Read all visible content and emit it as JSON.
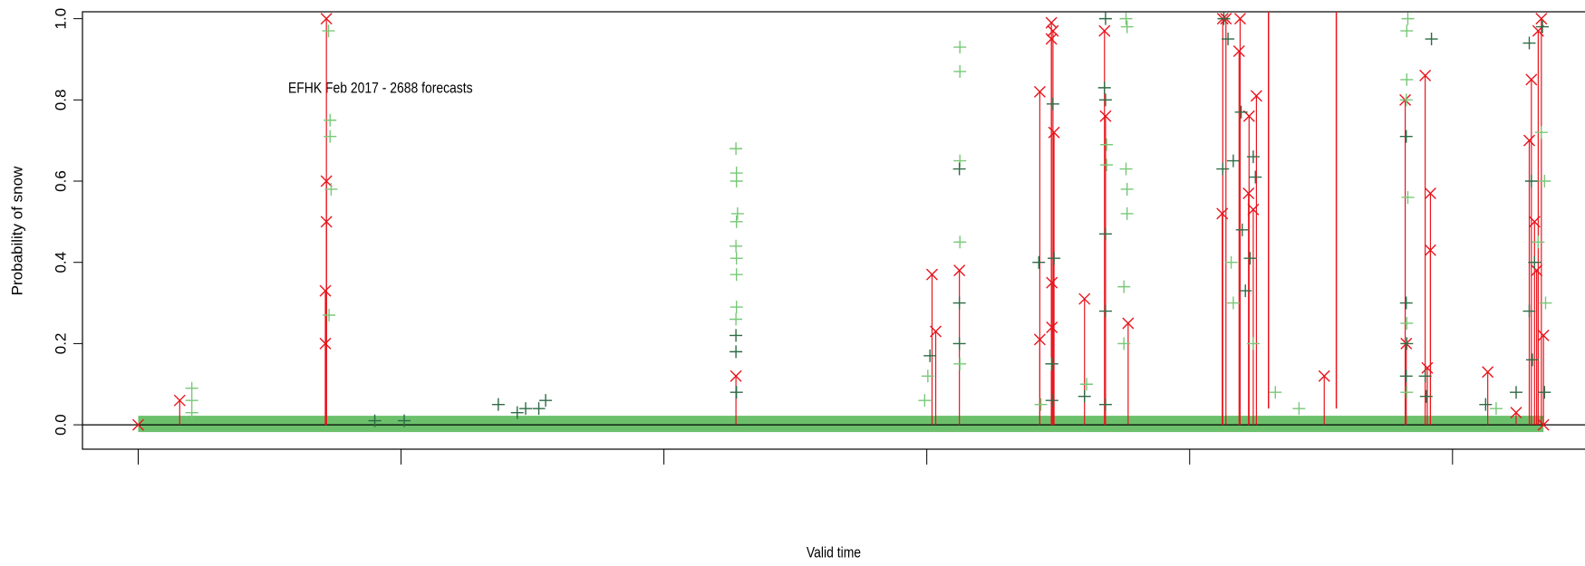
{
  "chart_data": {
    "type": "scatter",
    "annotation": "EFHK Feb 2017 - 2688 forecasts",
    "x_label": "Valid time",
    "y_label": "Probability of snow",
    "xlim": [
      -1.06,
      27.52
    ],
    "xticks": [
      0,
      5,
      10,
      15,
      20,
      25
    ],
    "ylim": [
      -0.06,
      1.017
    ],
    "yticks": [
      {
        "value": 0,
        "label": "0.0"
      },
      {
        "value": 0.2,
        "label": "0.2"
      },
      {
        "value": 0.4,
        "label": "0.4"
      },
      {
        "value": 0.6,
        "label": "0.6"
      },
      {
        "value": 0.8,
        "label": "0.8"
      },
      {
        "value": 1,
        "label": "1.0"
      }
    ],
    "hline": 0,
    "zero_band": {
      "x": [
        0,
        26.73
      ],
      "value": 0,
      "color": "#6cc06c"
    },
    "vlines": [
      21.5,
      22.79
    ],
    "vline_color": "#e8141c",
    "series": [
      {
        "marker": "cross",
        "color": "#e8141c",
        "stems": true,
        "x": [
          0,
          0.79,
          3.58,
          3.58,
          3.58,
          3.56,
          3.56,
          11.37,
          15.1,
          15.17,
          15.62,
          17.15,
          17.15,
          17.37,
          17.4,
          17.37,
          17.38,
          17.38,
          17.42,
          18,
          18.38,
          18.4,
          18.83,
          20.63,
          20.69,
          20.96,
          20.94,
          20.62,
          21.13,
          21.27,
          21.12,
          21.21,
          22.56,
          24.1,
          24.12,
          24.48,
          24.58,
          24.58,
          24.52,
          25.67,
          26.21,
          26.5,
          26.46,
          26.56,
          26.63,
          26.69,
          26.73,
          26.6,
          26.73
        ],
        "values": [
          0,
          0.06,
          1.0,
          0.6,
          0.5,
          0.33,
          0.2,
          0.12,
          0.37,
          0.23,
          0.38,
          0.82,
          0.21,
          0.99,
          0.97,
          0.95,
          0.35,
          0.24,
          0.72,
          0.31,
          0.97,
          0.76,
          0.25,
          1.0,
          1.0,
          1.0,
          0.92,
          0.52,
          0.76,
          0.81,
          0.57,
          0.53,
          0.12,
          0.8,
          0.2,
          0.86,
          0.57,
          0.43,
          0.14,
          0.13,
          0.03,
          0.85,
          0.7,
          0.5,
          0.97,
          1.0,
          0.22,
          0.38,
          0
        ]
      },
      {
        "marker": "plus",
        "color": "#78c878",
        "x": [
          1.02,
          1.02,
          1.02,
          3.62,
          3.65,
          3.65,
          3.67,
          3.63,
          11.37,
          11.38,
          11.38,
          11.4,
          11.38,
          11.37,
          11.38,
          11.38,
          11.38,
          11.37,
          15.63,
          15.63,
          15.63,
          15.63,
          15.63,
          15.02,
          14.96,
          18.42,
          18.42,
          18.79,
          18.81,
          18.79,
          18.81,
          18.81,
          18.75,
          18.75,
          20.79,
          20.83,
          21.21,
          21.63,
          22.08,
          24.15,
          24.13,
          24.13,
          24.12,
          24.15,
          24.13,
          24.13,
          26.69,
          26.75,
          26.63,
          26.77,
          25.83,
          17.37,
          17.17,
          18.04
        ],
        "values": [
          0.09,
          0.06,
          0.03,
          0.97,
          0.75,
          0.71,
          0.58,
          0.27,
          0.68,
          0.62,
          0.6,
          0.52,
          0.5,
          0.44,
          0.41,
          0.37,
          0.29,
          0.26,
          0.93,
          0.87,
          0.65,
          0.45,
          0.15,
          0.12,
          0.06,
          0.69,
          0.64,
          1.0,
          0.98,
          0.63,
          0.58,
          0.52,
          0.34,
          0.2,
          0.4,
          0.3,
          0.2,
          0.08,
          0.04,
          1.0,
          0.97,
          0.85,
          0.8,
          0.56,
          0.25,
          0.08,
          0.72,
          0.6,
          0.45,
          0.3,
          0.04,
          0.15,
          0.05,
          0.1
        ]
      },
      {
        "marker": "plus",
        "color": "#2e6b46",
        "x": [
          4.5,
          5.06,
          6.85,
          7.21,
          7.37,
          7.62,
          7.75,
          11.37,
          11.37,
          11.38,
          15.62,
          15.62,
          15.62,
          15.06,
          17.13,
          17.4,
          17.42,
          17.38,
          17.38,
          18,
          18.4,
          18.38,
          18.4,
          18.4,
          18.4,
          18.4,
          20.65,
          20.73,
          20.83,
          20.98,
          21,
          21.06,
          20.63,
          21.21,
          21.25,
          21.15,
          24.12,
          24.12,
          24.13,
          24.12,
          24.6,
          24.48,
          24.5,
          26.46,
          26.5,
          26.56,
          26.46,
          26.52,
          26.71,
          26.75,
          25.63,
          26.21
        ],
        "values": [
          0.01,
          0.01,
          0.05,
          0.03,
          0.04,
          0.04,
          0.06,
          0.22,
          0.18,
          0.08,
          0.63,
          0.3,
          0.2,
          0.17,
          0.4,
          0.79,
          0.41,
          0.15,
          0.06,
          0.07,
          1.0,
          0.83,
          0.8,
          0.47,
          0.28,
          0.05,
          1.0,
          0.95,
          0.65,
          0.77,
          0.48,
          0.33,
          0.63,
          0.66,
          0.61,
          0.41,
          0.71,
          0.3,
          0.2,
          0.12,
          0.95,
          0.12,
          0.07,
          0.94,
          0.6,
          0.4,
          0.28,
          0.16,
          0.98,
          0.08,
          0.05,
          0.08
        ]
      }
    ]
  }
}
